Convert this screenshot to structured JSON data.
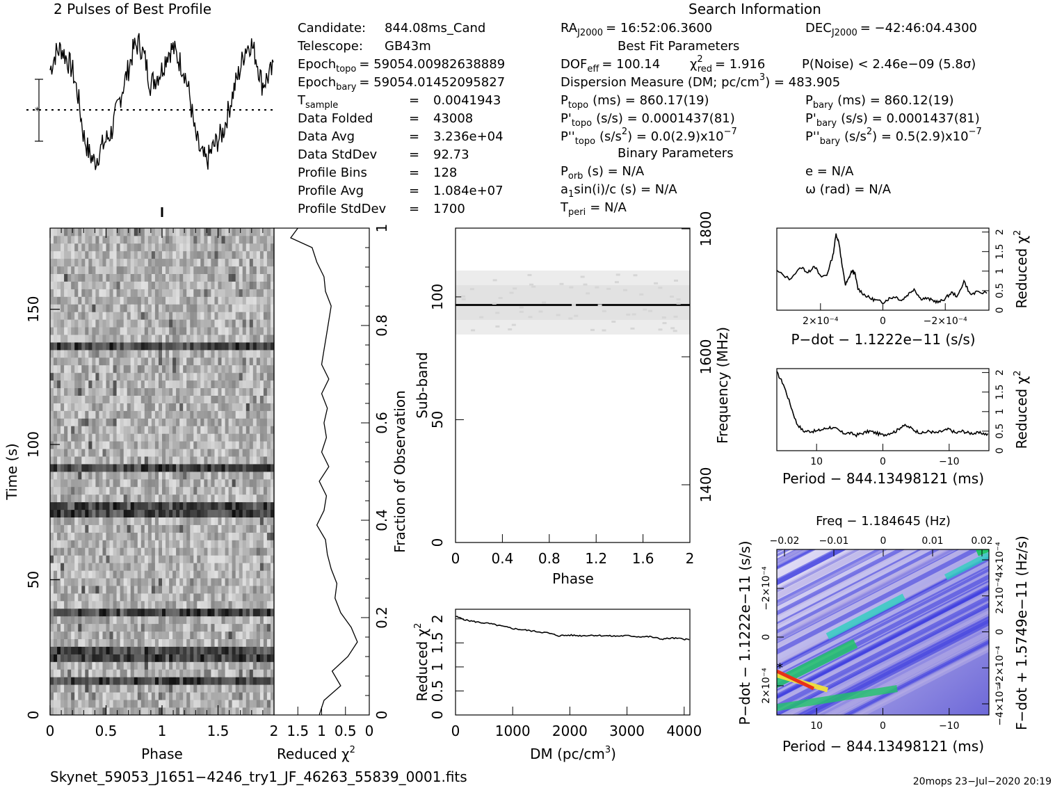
{
  "header": {
    "profile_title": "2 Pulses of Best Profile",
    "search_title": "Search Information",
    "best_fit_title": "Best Fit Parameters",
    "binary_title": "Binary Parameters"
  },
  "info": {
    "candidate_label": "Candidate:",
    "candidate": "844.08ms_Cand",
    "telescope_label": "Telescope:",
    "telescope": "GB43m",
    "epoch_topo_label": "Epoch",
    "epoch_topo_sub": "topo",
    "epoch_topo": "= 59054.00982638889",
    "epoch_bary_label": "Epoch",
    "epoch_bary_sub": "bary",
    "epoch_bary": "= 59054.01452095827",
    "tsample_label": "T",
    "tsample_sub": "sample",
    "tsample": "0.0041943",
    "data_folded_label": "Data Folded",
    "data_folded": "43008",
    "data_avg_label": "Data Avg",
    "data_avg": "3.236e+04",
    "data_std_label": "Data StdDev",
    "data_std": "92.73",
    "prof_bins_label": "Profile Bins",
    "prof_bins": "128",
    "prof_avg_label": "Profile Avg",
    "prof_avg": "1.084e+07",
    "prof_std_label": "Profile StdDev",
    "prof_std": "1700",
    "eq": "="
  },
  "search": {
    "ra_label": "RA",
    "ra_sub": "J2000",
    "ra": "= 16:52:06.3600",
    "dec_label": "DEC",
    "dec_sub": "J2000",
    "dec": "= −42:46:04.4300",
    "dof_label": "DOF",
    "dof_sub": "eff",
    "dof": "= 100.14",
    "chi_label": "χ",
    "chi_sup": "2",
    "chi_sub": "red",
    "chi": "= 1.916",
    "pnoise": "P(Noise) < 2.46e−09   (5.8σ)",
    "dm_line": "Dispersion Measure (DM; pc/cm",
    "dm_sup": "3",
    "dm_val": ") = 483.905",
    "ptopo_label": "P",
    "ptopo_sub": "topo",
    "ptopo": "(ms) =  860.17(19)",
    "pbary_label": "P",
    "pbary_sub": "bary",
    "pbary": "(ms) =  860.12(19)",
    "pdtopo_label": "P'",
    "pdtopo_sub": "topo",
    "pdtopo": "(s/s) =  0.0001437(81)",
    "pdbary_label": "P'",
    "pdbary_sub": "bary",
    "pdbary": "(s/s) =  0.0001437(81)",
    "pddtopo_label": "P''",
    "pddtopo_sub": "topo",
    "pddtopo_a": "(s/s",
    "pddtopo_b": ") = 0.0(2.9)x10",
    "pddbary_label": "P''",
    "pddbary_sub": "bary",
    "pddbary_a": "(s/s",
    "pddbary_b": ") =  0.5(2.9)x10",
    "sup2": "2",
    "supm7": "−7",
    "porb_label": "P",
    "porb_sub": "orb",
    "porb": "(s) = N/A",
    "ecc": "e = N/A",
    "asini_a": "a",
    "asini_sub": "1",
    "asini_b": "sin(i)/c (s) = N/A",
    "omega": "ω (rad) = N/A",
    "tperi_label": "T",
    "tperi_sub": "peri",
    "tperi": "= N/A"
  },
  "footer": {
    "filename": "Skynet_59053_J1651−4246_try1_JF_46263_55839_0001.fits",
    "stamp": "20mops  23−Jul−2020  20:19"
  },
  "colors": {
    "ink": "#000000",
    "grid_dark": "#111111",
    "contour_blue": "#3a3ae0",
    "contour_low": "#b9b0e6",
    "contour_green": "#22c46a",
    "contour_red": "#e8311a",
    "contour_yellow": "#f2e23a"
  },
  "chart_data": [
    {
      "type": "line",
      "name": "profile",
      "title": "2 Pulses of Best Profile",
      "x": [
        0.0,
        0.05,
        0.1,
        0.15,
        0.2,
        0.25,
        0.3,
        0.35,
        0.4,
        0.45,
        0.5,
        0.55,
        0.6,
        0.65,
        0.7,
        0.75,
        0.8,
        0.85,
        0.9,
        0.95,
        1.0,
        1.05,
        1.1,
        1.15,
        1.2,
        1.25,
        1.3,
        1.35,
        1.4,
        1.45,
        1.5,
        1.55,
        1.6,
        1.65,
        1.7,
        1.75,
        1.8,
        1.85,
        1.9,
        1.95,
        2.0
      ],
      "values": [
        0.55,
        0.78,
        0.85,
        0.7,
        0.55,
        0.2,
        -0.35,
        -0.6,
        -0.72,
        -0.55,
        -0.42,
        -0.3,
        0.0,
        0.3,
        0.55,
        0.85,
        0.92,
        0.7,
        0.35,
        0.45,
        0.55,
        0.78,
        0.85,
        0.7,
        0.55,
        0.2,
        -0.35,
        -0.6,
        -0.72,
        -0.55,
        -0.42,
        -0.3,
        0.0,
        0.3,
        0.55,
        0.85,
        0.92,
        0.7,
        0.35,
        0.45,
        0.55
      ],
      "xlabel": "",
      "ylabel": "",
      "noise_sigma": "1"
    },
    {
      "type": "heatmap",
      "name": "time_vs_phase",
      "xlabel": "Phase",
      "ylabel": "Time (s)",
      "x_ticks": [
        "0",
        "0.5",
        "1",
        "1.5"
      ],
      "x_tick_values": [
        0,
        0.5,
        1,
        1.5
      ],
      "y_ticks": [
        "0",
        "50",
        "100",
        "150"
      ],
      "y_tick_values": [
        0,
        50,
        100,
        150
      ],
      "xlim": [
        0,
        2
      ],
      "ylim": [
        0,
        180
      ],
      "dark_rows_s": [
        136,
        92,
        76,
        38,
        22,
        13
      ]
    },
    {
      "type": "line",
      "name": "reduced_chi2_vs_time",
      "xlabel": "Reduced χ",
      "xlabel_sup": "2",
      "ylabel": "Fraction of Observation",
      "x_ticks": [
        "2",
        "1.5",
        "1",
        "0.5",
        "0"
      ],
      "x_tick_values": [
        2,
        1.5,
        1,
        0.5,
        0
      ],
      "y_ticks": [
        "0",
        "0.2",
        "0.4",
        "0.6",
        "0.8",
        "1"
      ],
      "y_tick_values": [
        0,
        0.2,
        0.4,
        0.6,
        0.8,
        1
      ],
      "xlim": [
        2,
        0
      ],
      "ylim": [
        0,
        1
      ],
      "fraction": [
        0.0,
        0.03,
        0.06,
        0.09,
        0.12,
        0.15,
        0.18,
        0.21,
        0.24,
        0.27,
        0.3,
        0.33,
        0.36,
        0.39,
        0.42,
        0.45,
        0.48,
        0.51,
        0.54,
        0.57,
        0.6,
        0.63,
        0.66,
        0.69,
        0.72,
        0.75,
        0.78,
        0.81,
        0.84,
        0.87,
        0.9,
        0.93,
        0.96,
        0.98,
        1.0
      ],
      "chi2": [
        1.05,
        0.95,
        0.6,
        0.78,
        0.45,
        0.25,
        0.38,
        0.6,
        0.72,
        0.68,
        0.8,
        0.88,
        0.92,
        1.1,
        0.95,
        0.9,
        1.05,
        0.85,
        1.0,
        0.9,
        0.95,
        0.88,
        1.0,
        0.85,
        1.0,
        0.95,
        0.9,
        0.85,
        0.8,
        0.92,
        0.95,
        1.1,
        1.2,
        1.65,
        1.5
      ]
    },
    {
      "type": "heatmap",
      "name": "subband_vs_phase",
      "xlabel": "Phase",
      "ylabel": "Sub-band",
      "y2label": "Frequency (MHz)",
      "x_ticks": [
        "0",
        "0.4",
        "0.8",
        "1.2",
        "1.6",
        "2"
      ],
      "x_tick_values": [
        0,
        0.4,
        0.8,
        1.2,
        1.6,
        2
      ],
      "y_ticks": [
        "0",
        "50",
        "100"
      ],
      "y_tick_values": [
        0,
        50,
        100
      ],
      "y2_ticks": [
        "1400",
        "1600",
        "1800"
      ],
      "xlim": [
        0,
        2
      ],
      "ylim": [
        0,
        128
      ],
      "signal_subband": 97,
      "band_start": 84,
      "band_end": 110
    },
    {
      "type": "line",
      "name": "reduced_chi2_vs_dm",
      "xlabel": "DM (pc/cm",
      "xlabel_sup": "3",
      "xlabel_end": ")",
      "ylabel": "Reduced χ",
      "ylabel_sup": "2",
      "x_ticks": [
        "0",
        "1000",
        "2000",
        "3000",
        "4000"
      ],
      "x_tick_values": [
        0,
        1000,
        2000,
        3000,
        4000
      ],
      "y_ticks": [
        "0",
        "0.5",
        "1",
        "1.5",
        "2"
      ],
      "y_tick_values": [
        0,
        0.5,
        1,
        1.5,
        2
      ],
      "xlim": [
        0,
        4100
      ],
      "ylim": [
        0,
        2.2
      ],
      "x": [
        0,
        200,
        400,
        600,
        800,
        1000,
        1200,
        1400,
        1600,
        1800,
        2000,
        2200,
        2400,
        2600,
        2800,
        3000,
        3200,
        3400,
        3600,
        3800,
        4000,
        4100
      ],
      "y": [
        2.05,
        1.97,
        1.93,
        1.9,
        1.85,
        1.8,
        1.77,
        1.74,
        1.71,
        1.65,
        1.66,
        1.65,
        1.66,
        1.65,
        1.64,
        1.65,
        1.63,
        1.63,
        1.58,
        1.6,
        1.58,
        1.57
      ]
    },
    {
      "type": "line",
      "name": "chi2_vs_pdot",
      "xlabel": "P−dot − 1.1222e−11 (s/s)",
      "ylabel": "Reduced χ",
      "ylabel_sup": "2",
      "x_ticks": [
        "2×10⁻⁴",
        "0",
        "−2×10⁻⁴"
      ],
      "x_tick_values": [
        0.0002,
        0,
        -0.0002
      ],
      "y_ticks": [
        "0",
        "0.5",
        "1",
        "1.5",
        "2"
      ],
      "y_tick_values": [
        0,
        0.5,
        1,
        1.5,
        2
      ],
      "xlim": [
        0.00034,
        -0.00034
      ],
      "ylim": [
        0,
        2.1
      ],
      "x": [
        0.00034,
        0.0003,
        0.00026,
        0.00024,
        0.00022,
        0.0002,
        0.00018,
        0.00016,
        0.00015,
        0.00014,
        0.00013,
        0.00012,
        0.00011,
        0.0001,
        9e-05,
        8e-05,
        6e-05,
        4e-05,
        2e-05,
        0.0,
        -2e-05,
        -4e-05,
        -6e-05,
        -8e-05,
        -0.0001,
        -0.00012,
        -0.00014,
        -0.00016,
        -0.00018,
        -0.0002,
        -0.00022,
        -0.00024,
        -0.00026,
        -0.00028,
        -0.0003,
        -0.00034
      ],
      "y": [
        1.0,
        0.8,
        1.1,
        0.95,
        1.15,
        0.85,
        0.9,
        1.4,
        1.95,
        1.7,
        1.1,
        0.65,
        0.8,
        1.0,
        0.95,
        0.55,
        0.4,
        0.3,
        0.25,
        0.2,
        0.3,
        0.35,
        0.25,
        0.4,
        0.55,
        0.3,
        0.3,
        0.25,
        0.2,
        0.3,
        0.45,
        0.35,
        0.75,
        0.4,
        0.45,
        0.45
      ]
    },
    {
      "type": "line",
      "name": "chi2_vs_period",
      "xlabel": "Period − 844.13498121 (ms)",
      "ylabel": "Reduced χ",
      "ylabel_sup": "2",
      "x_ticks": [
        "10",
        "0",
        "−10"
      ],
      "x_tick_values": [
        10,
        0,
        -10
      ],
      "y_ticks": [
        "0",
        "0.5",
        "1",
        "1.5",
        "2"
      ],
      "y_tick_values": [
        0,
        0.5,
        1,
        1.5,
        2
      ],
      "xlim": [
        16,
        -16
      ],
      "ylim": [
        0,
        2.1
      ],
      "x": [
        16,
        15,
        14,
        13,
        12,
        11,
        10,
        9,
        8,
        7,
        6,
        5,
        4,
        3,
        2,
        1,
        0,
        -1,
        -2,
        -3,
        -4,
        -5,
        -6,
        -7,
        -8,
        -9,
        -10,
        -11,
        -12,
        -13,
        -14,
        -15,
        -16
      ],
      "y": [
        2.0,
        1.7,
        1.2,
        0.7,
        0.5,
        0.5,
        0.5,
        0.55,
        0.6,
        0.55,
        0.45,
        0.45,
        0.4,
        0.45,
        0.5,
        0.45,
        0.4,
        0.45,
        0.5,
        0.65,
        0.6,
        0.5,
        0.45,
        0.5,
        0.45,
        0.5,
        0.55,
        0.45,
        0.5,
        0.45,
        0.45,
        0.45,
        0.4
      ]
    },
    {
      "type": "heatmap",
      "name": "pdot_vs_period",
      "top_label": "Freq − 1.184645 (Hz)",
      "xlabel": "Period − 844.13498121 (ms)",
      "ylabel": "P−dot − 1.1222e−11 (s/s)",
      "y2label": "F−dot + 1.5749e−11 (Hz/s)",
      "x_ticks": [
        "10",
        "0",
        "−10"
      ],
      "x_tick_values": [
        10,
        0,
        -10
      ],
      "top_ticks": [
        "−0.02",
        "−0.01",
        "0",
        "0.01",
        "0.02"
      ],
      "y_ticks": [
        "−2×10⁻⁴",
        "0",
        "2×10⁻⁴"
      ],
      "y2_ticks": [
        "4×10⁻⁴",
        "2×10⁻⁴",
        "0",
        "−2×10⁻⁴",
        "−4×10⁻⁴"
      ],
      "xlim": [
        16,
        -16
      ],
      "ylim": [
        0.00034,
        -0.00034
      ],
      "best_x": 16,
      "best_y": 0.00014
    }
  ]
}
